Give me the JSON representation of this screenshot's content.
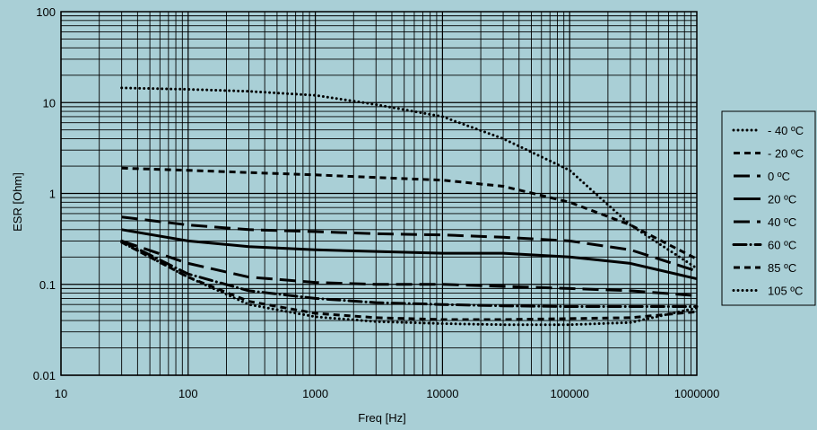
{
  "chart_data": {
    "type": "line",
    "title": "",
    "xlabel": "Freq [Hz]",
    "ylabel": "ESR [Ohm]",
    "x_scale": "log",
    "y_scale": "log",
    "xlim": [
      10,
      1000000
    ],
    "ylim": [
      0.01,
      100
    ],
    "grid": true,
    "legend_position": "right",
    "background_color": "#a9cfd6",
    "line_color": "#000000",
    "x_ticks": [
      "10",
      "100",
      "1000",
      "10000",
      "100000",
      "1000000"
    ],
    "x_tick_values": [
      10,
      100,
      1000,
      10000,
      100000,
      1000000
    ],
    "y_ticks": [
      "100",
      "10",
      "1",
      "0.1",
      "0.01"
    ],
    "y_tick_values": [
      100,
      10,
      1,
      0.1,
      0.01
    ],
    "series": [
      {
        "name": "- 40 ºC",
        "style": "dotted",
        "x": [
          30,
          100,
          300,
          1000,
          3000,
          10000,
          30000,
          100000,
          300000,
          1000000
        ],
        "y": [
          14.5,
          14,
          13.3,
          12,
          9.5,
          7,
          4,
          1.8,
          0.45,
          0.15
        ]
      },
      {
        "name": "- 20 ºC",
        "style": "dashed",
        "x": [
          30,
          100,
          300,
          1000,
          3000,
          10000,
          30000,
          100000,
          300000,
          1000000
        ],
        "y": [
          1.9,
          1.8,
          1.7,
          1.6,
          1.5,
          1.4,
          1.2,
          0.8,
          0.45,
          0.19
        ]
      },
      {
        "name": "0 ºC",
        "style": "long-dash",
        "x": [
          30,
          100,
          300,
          1000,
          3000,
          10000,
          30000,
          100000,
          300000,
          1000000
        ],
        "y": [
          0.55,
          0.45,
          0.4,
          0.38,
          0.36,
          0.35,
          0.33,
          0.3,
          0.24,
          0.14
        ]
      },
      {
        "name": "20 ºC",
        "style": "solid",
        "x": [
          30,
          100,
          300,
          1000,
          3000,
          10000,
          30000,
          100000,
          300000,
          1000000
        ],
        "y": [
          0.4,
          0.3,
          0.26,
          0.24,
          0.23,
          0.22,
          0.22,
          0.2,
          0.17,
          0.115
        ]
      },
      {
        "name": "40 ºC",
        "style": "long-dash",
        "x": [
          30,
          100,
          300,
          1000,
          3000,
          10000,
          30000,
          100000,
          300000,
          1000000
        ],
        "y": [
          0.3,
          0.17,
          0.12,
          0.105,
          0.1,
          0.1,
          0.095,
          0.09,
          0.085,
          0.075
        ]
      },
      {
        "name": "60 ºC",
        "style": "dash-dot",
        "x": [
          30,
          100,
          300,
          1000,
          3000,
          10000,
          30000,
          100000,
          300000,
          1000000
        ],
        "y": [
          0.3,
          0.13,
          0.085,
          0.07,
          0.063,
          0.06,
          0.058,
          0.057,
          0.057,
          0.057
        ]
      },
      {
        "name": "85 ºC",
        "style": "dashed",
        "x": [
          30,
          100,
          300,
          1000,
          3000,
          10000,
          30000,
          100000,
          300000,
          1000000
        ],
        "y": [
          0.29,
          0.12,
          0.065,
          0.048,
          0.043,
          0.041,
          0.041,
          0.042,
          0.043,
          0.05
        ]
      },
      {
        "name": "105 ºC",
        "style": "dotted",
        "x": [
          30,
          100,
          300,
          1000,
          3000,
          10000,
          30000,
          100000,
          300000,
          1000000
        ],
        "y": [
          0.29,
          0.12,
          0.06,
          0.044,
          0.039,
          0.037,
          0.036,
          0.036,
          0.038,
          0.055
        ]
      }
    ]
  }
}
